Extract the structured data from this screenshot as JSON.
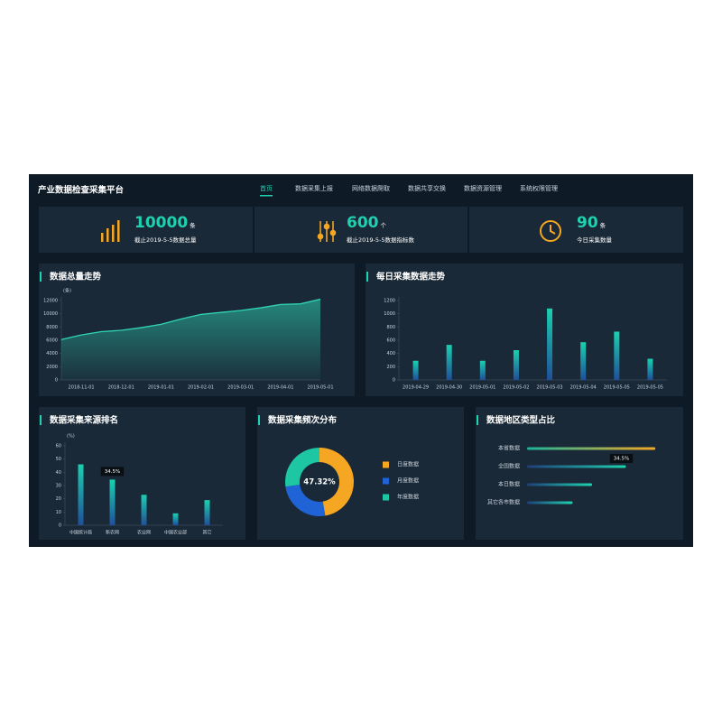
{
  "header": {
    "title": "产业数据检查采集平台",
    "nav": [
      "首页",
      "数据采集上报",
      "网络数据爬取",
      "数据共享交换",
      "数据资源管理",
      "系统权限管理"
    ],
    "active": 0
  },
  "stats": [
    {
      "value": 10000,
      "unit": "条",
      "label": "截止2019-5-5数据总量"
    },
    {
      "value": 600,
      "unit": "个",
      "label": "截止2019-5-5数据指标数"
    },
    {
      "value": 90,
      "unit": "条",
      "label": "今日采集数量"
    }
  ],
  "panels": [
    {
      "title": "数据总量走势",
      "chart": {
        "type": "area",
        "y_unit": "(条)",
        "categories": [
          null,
          "2018-11-01",
          null,
          "2018-12-01",
          null,
          "2019-01-01",
          null,
          "2019-02-01",
          null,
          "2019-03-01",
          null,
          "2019-04-01",
          null,
          "2019-05-01"
        ],
        "values": [
          6100,
          6800,
          7300,
          7500,
          7900,
          8400,
          9200,
          9900,
          10200,
          10500,
          10900,
          11400,
          11500,
          12200
        ],
        "color": "#2fd6b6",
        "ylim": [
          0,
          12000
        ],
        "yticks": [
          0,
          2000,
          4000,
          6000,
          8000,
          10000,
          12000
        ]
      }
    },
    {
      "title": "每日采集数据走势",
      "chart": {
        "type": "bar",
        "categories": [
          "2019-04-29",
          "2019-04-30",
          "2019-05-01",
          "2019-05-02",
          "2019-05-03",
          "2019-05-04",
          "2019-05-05",
          "2019-05-05"
        ],
        "values": [
          290,
          530,
          290,
          450,
          1080,
          570,
          730,
          320
        ],
        "color": "#1ad1b0",
        "ylim": [
          0,
          1200
        ],
        "yticks": [
          0,
          200,
          400,
          600,
          800,
          1000,
          1200
        ]
      }
    },
    {
      "title": "数据采集来源排名",
      "chart": {
        "type": "bar",
        "y_unit": "(%)",
        "categories": [
          "中国统计局",
          "新农网",
          "农业网",
          "中国农业部",
          "其它"
        ],
        "values": [
          46,
          34.5,
          23,
          9,
          19
        ],
        "value_labels": [
          null,
          "34.5%",
          null,
          null,
          null
        ],
        "color": "#1ad1b0",
        "ylim": [
          0,
          60
        ],
        "yticks": [
          0,
          10,
          20,
          30,
          40,
          50,
          60
        ]
      }
    },
    {
      "title": "数据采集频次分布",
      "chart": {
        "type": "donut",
        "center_label": "47.32%",
        "series": [
          {
            "name": "日度数据",
            "color": "#f5a623",
            "value": 47.32
          },
          {
            "name": "月度数据",
            "color": "#1f63d6",
            "value": 25.5
          },
          {
            "name": "年度数据",
            "color": "#1dc7a4",
            "value": 27.18
          }
        ]
      }
    },
    {
      "title": "数据地区类型占比",
      "chart": {
        "type": "hbar",
        "categories": [
          "本省数据",
          "全国数据",
          "本日数据",
          "其它各市数据"
        ],
        "values": [
          44.8,
          34.5,
          22.7,
          15.9
        ],
        "value_labels": [
          null,
          "34.5%",
          null,
          null
        ],
        "colors": [
          "#f5a623",
          "#1dd3b0",
          "#1dd3b0",
          "#1dd3b0"
        ],
        "xlim": [
          0,
          46
        ]
      }
    }
  ]
}
